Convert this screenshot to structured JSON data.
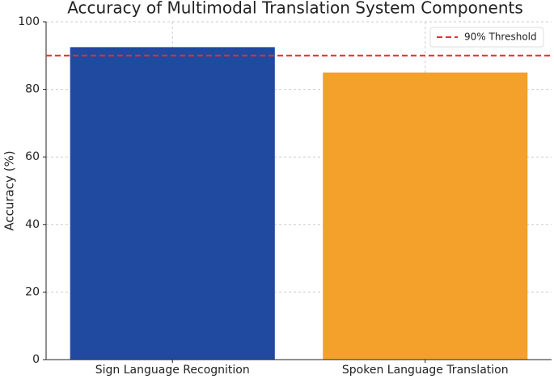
{
  "chart_data": {
    "type": "bar",
    "title": "Accuracy of Multimodal Translation System Components",
    "y_label": "Accuracy (%)",
    "categories": [
      "Sign Language Recognition",
      "Spoken Language Translation"
    ],
    "values": [
      92.5,
      85
    ],
    "colors": [
      "#1f4aa0",
      "#f3a12a"
    ],
    "ylim": [
      0,
      100
    ],
    "yticks": [
      0,
      20,
      40,
      60,
      80,
      100
    ],
    "grid": true,
    "reference_lines": [
      {
        "value": 90,
        "label": "90% Threshold",
        "color": "#e0302e"
      }
    ],
    "legend_position": "upper right"
  }
}
